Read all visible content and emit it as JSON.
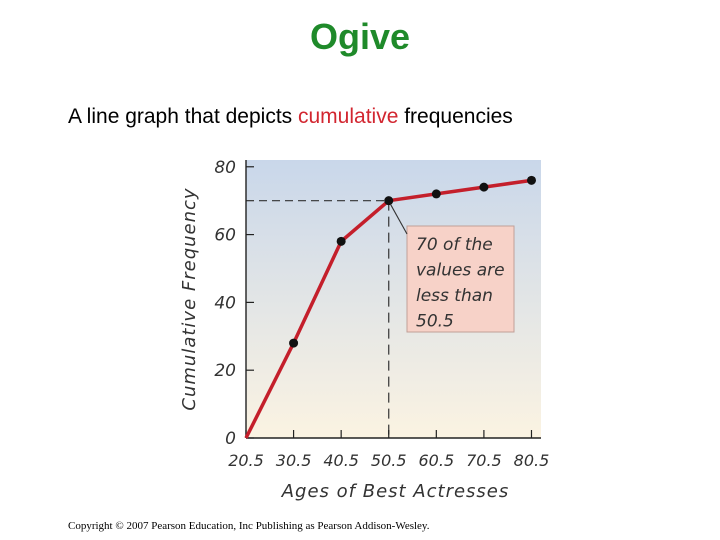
{
  "slide": {
    "title": "Ogive",
    "subtitle_before": "A line graph that depicts ",
    "subtitle_highlight": "cumulative",
    "subtitle_after": " frequencies",
    "copyright": "Copyright © 2007 Pearson Education, Inc Publishing as Pearson Addison-Wesley."
  },
  "colors": {
    "title": "#1f8a2a",
    "highlight": "#d22630",
    "line": "#c41f2b",
    "callout_fill": "#f7d2c8",
    "plot_top": "#c9d7ea",
    "plot_bottom": "#fbf3e2"
  },
  "chart_data": {
    "type": "line",
    "xlabel": "Ages of Best Actresses",
    "ylabel": "Cumulative Frequency",
    "x_ticks": [
      "20.5",
      "30.5",
      "40.5",
      "50.5",
      "60.5",
      "70.5",
      "80.5"
    ],
    "y_ticks": [
      "0",
      "20",
      "40",
      "60",
      "80"
    ],
    "xlim": [
      20.5,
      82.5
    ],
    "ylim": [
      0,
      82
    ],
    "series": [
      {
        "x": [
          20.5,
          30.5,
          40.5,
          50.5,
          60.5,
          70.5,
          80.5
        ],
        "y": [
          0,
          28,
          58,
          70,
          72,
          74,
          76
        ]
      }
    ],
    "reference": {
      "x": 50.5,
      "y": 70
    },
    "annotation": {
      "lines": [
        "70 of the",
        "values are",
        "less than",
        "50.5"
      ]
    },
    "grid": false
  }
}
